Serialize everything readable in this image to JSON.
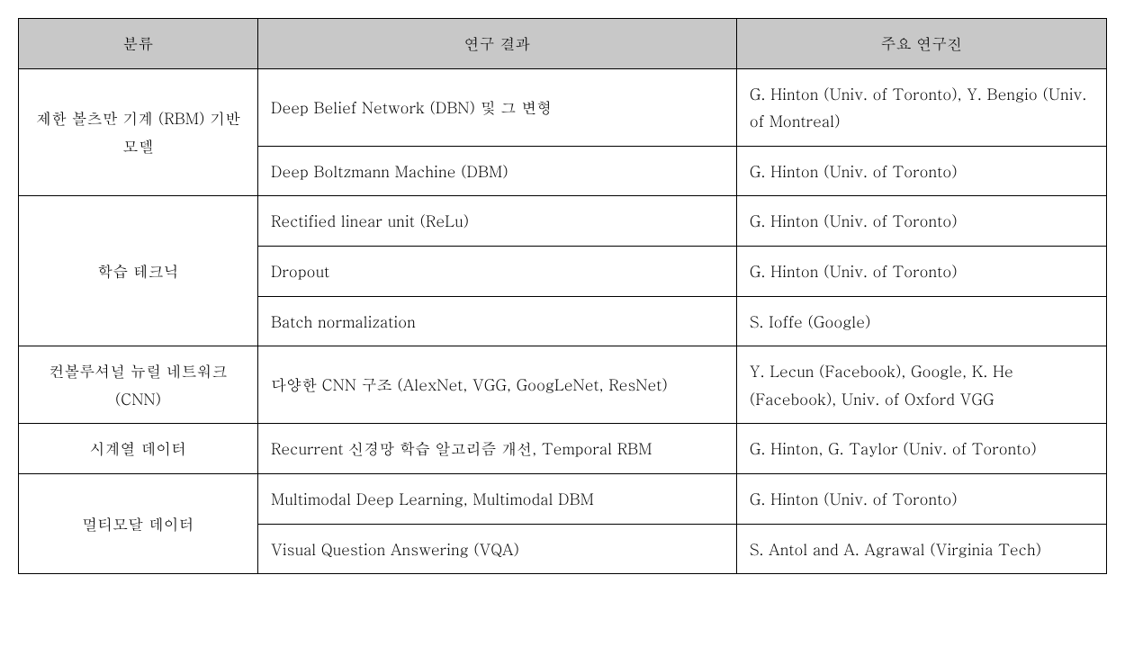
{
  "table": {
    "headers": {
      "category": "분류",
      "result": "연구 결과",
      "researchers": "주요 연구진"
    },
    "header_bg": "#c8c8c8",
    "border_color": "#000000",
    "font_size": 17,
    "groups": [
      {
        "category": "제한 볼츠만 기계 (RBM) 기반 모델",
        "rows": [
          {
            "result": "Deep Belief Network (DBN) 및 그 변형",
            "researchers": "G. Hinton (Univ. of Toronto), Y. Bengio (Univ. of Montreal)"
          },
          {
            "result": "Deep Boltzmann Machine (DBM)",
            "researchers": "G. Hinton (Univ. of Toronto)"
          }
        ]
      },
      {
        "category": "학습 테크닉",
        "rows": [
          {
            "result": "Rectified linear unit (ReLu)",
            "researchers": "G. Hinton (Univ. of Toronto)"
          },
          {
            "result": "Dropout",
            "researchers": "G. Hinton (Univ. of Toronto)"
          },
          {
            "result": "Batch normalization",
            "researchers": "S. Ioffe (Google)"
          }
        ]
      },
      {
        "category": "컨볼루셔널 뉴럴 네트워크 (CNN)",
        "rows": [
          {
            "result": "다양한 CNN 구조 (AlexNet, VGG, GoogLeNet, ResNet)",
            "researchers": "Y. Lecun (Facebook), Google, K. He (Facebook), Univ. of Oxford VGG"
          }
        ]
      },
      {
        "category": "시계열 데이터",
        "rows": [
          {
            "result": "Recurrent 신경망 학습 알고리즘 개선, Temporal RBM",
            "researchers": "G. Hinton, G. Taylor (Univ. of Toronto)"
          }
        ]
      },
      {
        "category": "멀티모달 데이터",
        "rows": [
          {
            "result": "Multimodal Deep Learning, Multimodal DBM",
            "researchers": "G. Hinton (Univ. of Toronto)"
          },
          {
            "result": "Visual Question Answering (VQA)",
            "researchers": "S. Antol and A. Agrawal (Virginia Tech)"
          }
        ]
      }
    ]
  }
}
